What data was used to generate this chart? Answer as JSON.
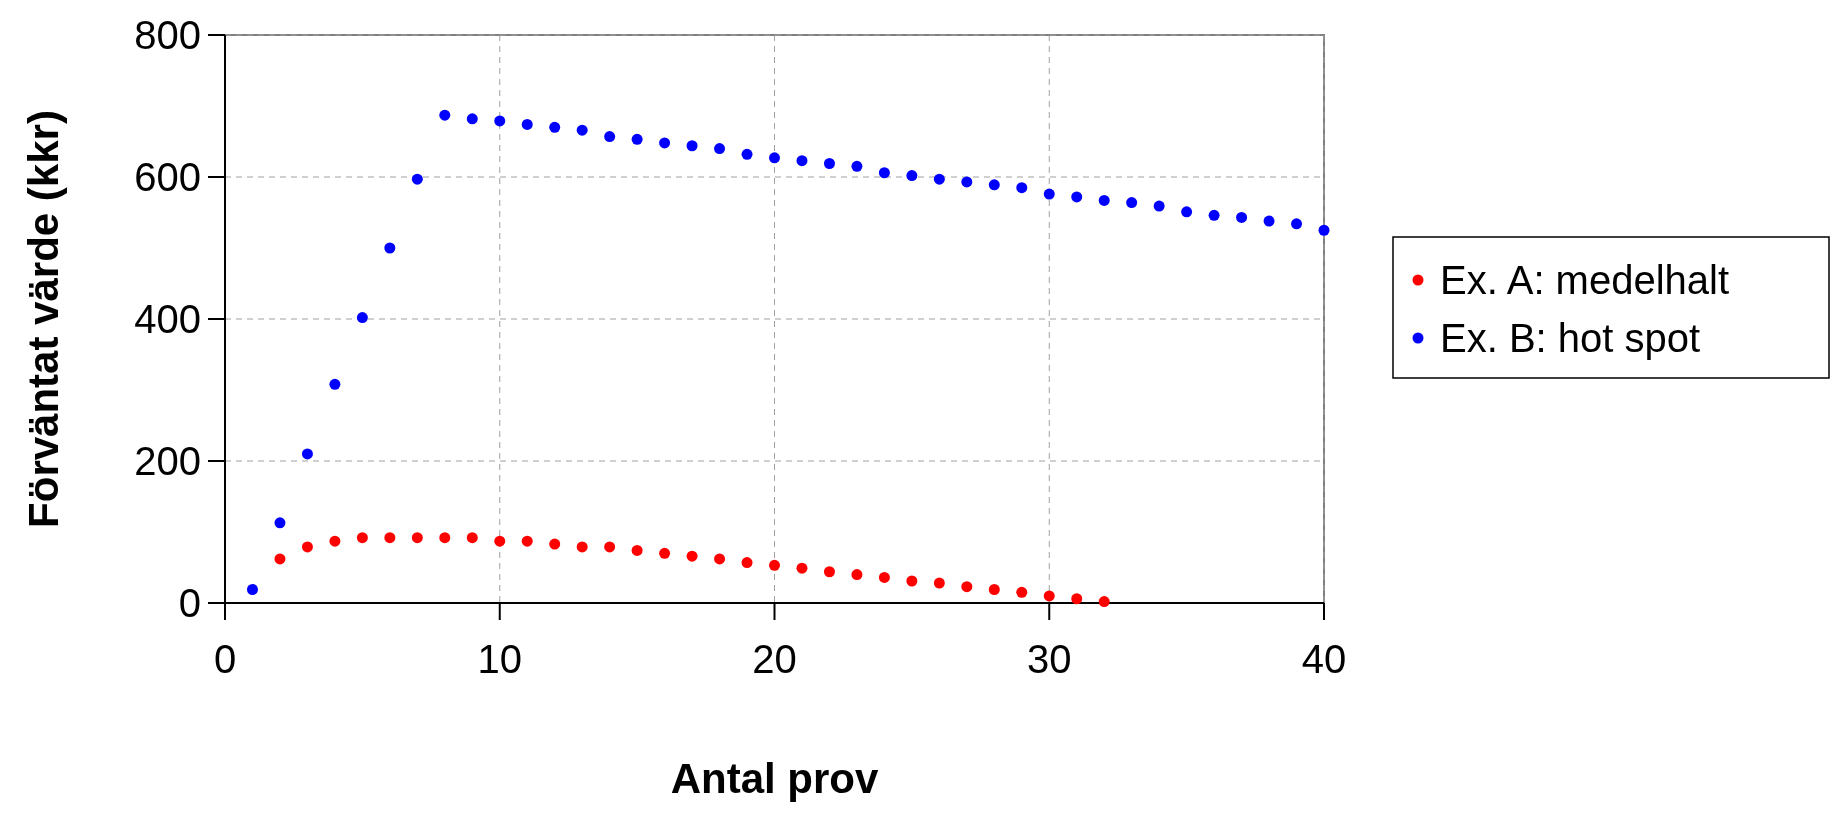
{
  "chart_data": {
    "type": "scatter",
    "xlabel": "Antal prov",
    "ylabel": "Förväntat värde (kkr)",
    "x": [
      1,
      2,
      3,
      4,
      5,
      6,
      7,
      8,
      9,
      10,
      11,
      12,
      13,
      14,
      15,
      16,
      17,
      18,
      19,
      20,
      21,
      22,
      23,
      24,
      25,
      26,
      27,
      28,
      29,
      30,
      31,
      32,
      33,
      34,
      35,
      36,
      37,
      38,
      39,
      40
    ],
    "series": [
      {
        "name": "Ex. A: medelhalt",
        "color": "#ff0000",
        "x": [
          2,
          3,
          4,
          5,
          6,
          7,
          8,
          9,
          10,
          11,
          12,
          13,
          14,
          15,
          16,
          17,
          18,
          19,
          20,
          21,
          22,
          23,
          24,
          25,
          26,
          27,
          28,
          29,
          30,
          31,
          32
        ],
        "values": [
          62,
          79,
          87,
          92,
          92,
          92,
          92,
          92,
          87,
          87,
          83,
          79,
          79,
          74,
          70,
          66,
          62,
          57,
          53,
          49,
          44,
          40,
          36,
          31,
          28,
          23,
          19,
          15,
          10,
          6,
          2
        ]
      },
      {
        "name": "Ex. B: hot spot",
        "color": "#0000ff",
        "values": [
          19,
          113,
          210,
          308,
          402,
          500,
          597,
          687,
          682,
          679,
          674,
          670,
          666,
          657,
          653,
          648,
          644,
          640,
          632,
          627,
          623,
          619,
          615,
          606,
          602,
          597,
          593,
          589,
          585,
          576,
          572,
          567,
          564,
          559,
          551,
          546,
          543,
          538,
          534,
          525
        ]
      }
    ],
    "xlim": [
      0,
      40
    ],
    "xticks": [
      0,
      10,
      20,
      30,
      40
    ],
    "ylim": [
      0,
      800
    ],
    "yticks": [
      0,
      200,
      400,
      600,
      800
    ],
    "grid": true,
    "legend": "right",
    "marker": "circle"
  }
}
